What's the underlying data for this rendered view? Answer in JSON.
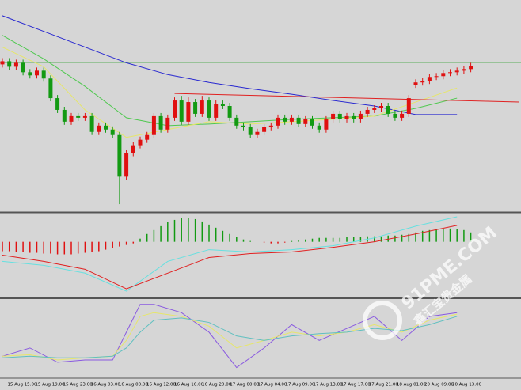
{
  "chart_data": [
    {
      "type": "candlestick",
      "open": [
        188,
        192,
        185,
        190,
        178,
        174,
        180,
        170,
        145,
        130,
        115,
        122,
        120,
        122,
        102,
        110,
        105,
        98,
        45,
        75,
        85,
        92,
        98,
        122,
        105,
        120,
        142,
        115,
        140,
        125,
        142,
        120,
        138,
        135,
        120,
        110,
        108,
        98,
        102,
        108,
        110,
        120,
        115,
        120,
        112,
        118,
        110,
        105,
        118,
        125,
        118,
        122,
        118,
        125,
        130,
        132,
        135,
        125,
        120,
        125,
        162,
        165,
        167,
        172,
        173,
        177,
        178,
        180,
        182
      ],
      "close": [
        192,
        185,
        190,
        178,
        174,
        180,
        170,
        145,
        130,
        115,
        122,
        120,
        122,
        102,
        110,
        105,
        98,
        45,
        75,
        85,
        92,
        98,
        122,
        105,
        120,
        142,
        115,
        140,
        125,
        142,
        120,
        138,
        135,
        120,
        110,
        108,
        98,
        102,
        108,
        110,
        120,
        115,
        120,
        112,
        118,
        110,
        105,
        118,
        125,
        118,
        122,
        118,
        125,
        130,
        132,
        135,
        125,
        120,
        125,
        145,
        165,
        167,
        172,
        173,
        177,
        178,
        180,
        182,
        186
      ],
      "high": [
        196,
        196,
        194,
        194,
        182,
        184,
        184,
        174,
        149,
        134,
        126,
        126,
        126,
        126,
        114,
        114,
        109,
        102,
        79,
        89,
        96,
        102,
        126,
        126,
        124,
        146,
        148,
        146,
        144,
        148,
        146,
        142,
        142,
        139,
        124,
        114,
        112,
        106,
        112,
        114,
        124,
        124,
        124,
        124,
        122,
        122,
        114,
        122,
        129,
        129,
        126,
        126,
        129,
        134,
        136,
        139,
        139,
        129,
        129,
        149,
        169,
        171,
        176,
        177,
        181,
        182,
        184,
        186,
        190
      ],
      "low": [
        184,
        181,
        181,
        174,
        170,
        170,
        166,
        141,
        126,
        111,
        111,
        116,
        116,
        98,
        98,
        101,
        94,
        10,
        41,
        71,
        81,
        88,
        94,
        101,
        101,
        116,
        111,
        111,
        121,
        121,
        116,
        116,
        131,
        116,
        106,
        104,
        94,
        94,
        98,
        104,
        106,
        111,
        111,
        108,
        108,
        106,
        101,
        101,
        114,
        114,
        114,
        114,
        114,
        121,
        126,
        128,
        121,
        116,
        116,
        121,
        158,
        161,
        163,
        168,
        169,
        173,
        174,
        176,
        178
      ],
      "up_color": "#e01010",
      "down_color": "#129a12",
      "ylim": [
        0,
        270
      ],
      "hline": {
        "value": 190,
        "color": "#8fbf8f"
      },
      "lines": [
        {
          "color": "#2828d0",
          "x": [
            0,
            6,
            12,
            18,
            24,
            30,
            36,
            42,
            48,
            54,
            60,
            66
          ],
          "values": [
            250,
            230,
            210,
            190,
            175,
            165,
            157,
            150,
            142,
            135,
            124,
            124
          ]
        },
        {
          "color": "#50c850",
          "x": [
            0,
            6,
            12,
            18,
            24,
            30,
            36,
            42,
            48,
            54,
            60,
            66
          ],
          "values": [
            225,
            195,
            160,
            120,
            110,
            112,
            115,
            118,
            120,
            122,
            132,
            145
          ]
        },
        {
          "color": "#e6e66a",
          "x": [
            0,
            6,
            12,
            18,
            24,
            30,
            36,
            42,
            48,
            54,
            60,
            66
          ],
          "values": [
            210,
            185,
            130,
            95,
            105,
            115,
            112,
            115,
            118,
            122,
            140,
            158
          ]
        },
        {
          "color": "#e02020",
          "x": [
            25,
            75
          ],
          "values": [
            151,
            140
          ]
        }
      ],
      "x_labels": [
        "15 Aug 15:00",
        "15 Aug 19:00",
        "15 Aug 23:00",
        "16 Aug 03:00",
        "16 Aug 08:00",
        "16 Aug 12:00",
        "16 Aug 16:00",
        "16 Aug 20:00",
        "17 Aug 00:00",
        "17 Aug 04:00",
        "17 Aug 09:00",
        "17 Aug 13:00",
        "17 Aug 17:00",
        "17 Aug 21:00",
        "18 Aug 01:00",
        "20 Aug 09:00",
        "20 Aug 13:00"
      ]
    },
    {
      "type": "macd",
      "histogram": [
        -12,
        -12,
        -13,
        -13,
        -14,
        -14,
        -15,
        -15,
        -16,
        -16,
        -16,
        -15,
        -14,
        -13,
        -12,
        -10,
        -8,
        -6,
        -4,
        -2,
        4,
        10,
        15,
        20,
        25,
        28,
        30,
        30,
        29,
        26,
        22,
        18,
        14,
        10,
        6,
        3,
        1,
        0,
        -1,
        -2,
        -2,
        -1,
        1,
        2,
        3,
        4,
        5,
        5,
        5,
        5,
        6,
        6,
        6,
        7,
        7,
        7,
        8,
        8,
        9,
        10,
        12,
        14,
        15,
        16,
        16,
        17,
        16,
        15,
        12
      ],
      "pos_color": "#129a12",
      "neg_color": "#e01010",
      "ylim": [
        -70,
        35
      ],
      "lines": [
        {
          "color": "#66e0e0",
          "x": [
            0,
            6,
            12,
            18,
            24,
            30,
            36,
            42,
            48,
            54,
            60,
            66
          ],
          "values": [
            -25,
            -30,
            -40,
            -63,
            -25,
            -10,
            -13,
            -10,
            -5,
            5,
            20,
            32
          ]
        },
        {
          "color": "#e02020",
          "x": [
            0,
            6,
            12,
            18,
            24,
            30,
            36,
            42,
            48,
            54,
            60,
            66
          ],
          "values": [
            -17,
            -25,
            -35,
            -60,
            -40,
            -20,
            -15,
            -13,
            -7,
            0,
            10,
            21
          ]
        }
      ]
    },
    {
      "type": "stochastic",
      "ylim": [
        0,
        100
      ],
      "lines": [
        {
          "color": "#8a5ae0",
          "x": [
            0,
            4,
            8,
            12,
            16,
            18,
            20,
            22,
            26,
            30,
            34,
            38,
            42,
            46,
            50,
            54,
            58,
            62,
            66
          ],
          "values": [
            26,
            37,
            18,
            21,
            21,
            58,
            95,
            95,
            84,
            58,
            11,
            37,
            68,
            47,
            63,
            79,
            47,
            79,
            84
          ]
        },
        {
          "color": "#e6e66a",
          "x": [
            0,
            4,
            8,
            12,
            16,
            18,
            20,
            22,
            26,
            30,
            34,
            38,
            42,
            46,
            50,
            54,
            58,
            62,
            66
          ],
          "values": [
            26,
            28,
            21,
            24,
            26,
            47,
            79,
            84,
            79,
            66,
            37,
            47,
            58,
            53,
            58,
            68,
            58,
            74,
            82
          ]
        },
        {
          "color": "#60c0c0",
          "x": [
            0,
            4,
            8,
            12,
            16,
            18,
            20,
            22,
            26,
            30,
            34,
            38,
            42,
            46,
            50,
            54,
            58,
            62,
            66
          ],
          "values": [
            24,
            26,
            24,
            24,
            26,
            37,
            58,
            74,
            77,
            71,
            53,
            47,
            53,
            56,
            58,
            63,
            60,
            68,
            79
          ]
        }
      ]
    }
  ],
  "watermark": {
    "site": "91PME.COM",
    "brand": "鑫汇宝贵金属"
  }
}
